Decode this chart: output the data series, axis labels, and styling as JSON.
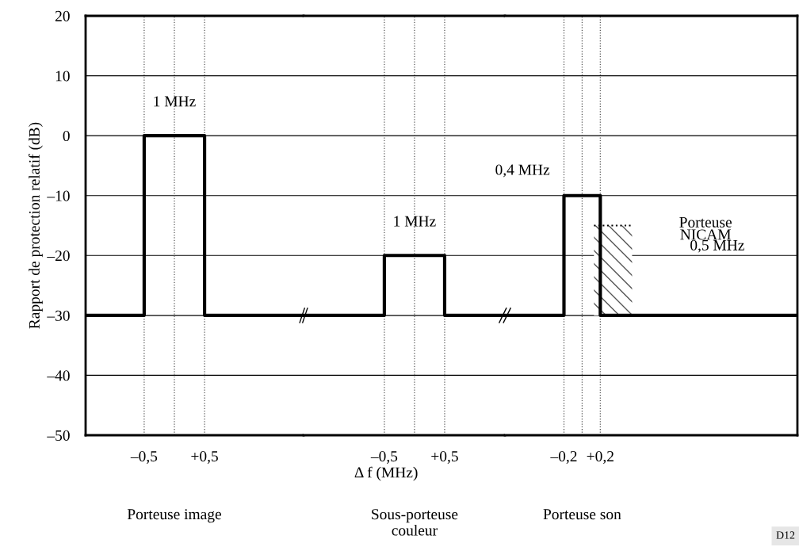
{
  "chart_data": [
    {
      "type": "line",
      "xlabel": "Porteuse image",
      "ylabel": "Rapport de protection relatif (dB)",
      "xlim": [
        -1.47,
        2.14
      ],
      "xticks": [
        {
          "value": -0.5,
          "label": "–0,5"
        },
        {
          "value": 0.5,
          "label": "+0,5"
        }
      ],
      "ylim": [
        -50,
        20
      ],
      "yticks": [
        {
          "value": -50,
          "label": "–50"
        },
        {
          "value": -40,
          "label": "–40"
        },
        {
          "value": -30,
          "label": "–30"
        },
        {
          "value": -20,
          "label": "–20"
        },
        {
          "value": -10,
          "label": "–10"
        },
        0,
        10,
        20
      ],
      "grid": "y",
      "line_style": "solid",
      "series": [
        {
          "color": "#000000",
          "x": [
            -1.47,
            -0.5,
            -0.5,
            0.5,
            0.5,
            2.14
          ],
          "values": [
            -30,
            -30,
            0,
            0,
            -30,
            -30
          ]
        }
      ],
      "ref_lines": [
        {
          "axis": "x",
          "value": -0.5,
          "color": "#555555",
          "line_style": "dotted"
        },
        {
          "axis": "x",
          "value": 0,
          "color": "#555555",
          "line_style": "dotted"
        },
        {
          "axis": "x",
          "value": 0.5,
          "color": "#555555",
          "line_style": "dotted"
        }
      ],
      "annotations": [
        {
          "text": "1 MHz",
          "x": 0,
          "y": 5.5
        }
      ]
    },
    {
      "type": "line",
      "xlabel": "Sous-porteuse\ncouleur",
      "xlim": [
        -1.84,
        1.5
      ],
      "xticks": [
        {
          "value": -0.5,
          "label": "–0,5"
        },
        {
          "value": 0.5,
          "label": "+0,5"
        }
      ],
      "ylim": [
        -50,
        20
      ],
      "yticks": [
        -50,
        -40,
        -30,
        -20,
        -10,
        0,
        10,
        20
      ],
      "grid": "y",
      "tick_labels": "x",
      "line_style": "solid",
      "series": [
        {
          "color": "#000000",
          "x": [
            -1.84,
            -0.5,
            -0.5,
            0.5,
            0.5,
            1.5
          ],
          "values": [
            -30,
            -30,
            -20,
            -20,
            -30,
            -30
          ]
        }
      ],
      "ref_lines": [
        {
          "axis": "x",
          "value": -0.5,
          "color": "#555555",
          "line_style": "dotted"
        },
        {
          "axis": "x",
          "value": 0,
          "color": "#555555",
          "line_style": "dotted"
        },
        {
          "axis": "x",
          "value": 0.5,
          "color": "#555555",
          "line_style": "dotted"
        }
      ],
      "annotations": [
        {
          "text": "1 MHz",
          "x": 0,
          "y": -14.5
        },
        "Δ f (MHz)"
      ]
    },
    {
      "type": "line",
      "xlabel": "Porteuse son",
      "xlim": [
        -0.85,
        2.37
      ],
      "xticks": [
        {
          "value": -0.2,
          "label": "–0,2"
        },
        {
          "value": 0.2,
          "label": "+0,2"
        }
      ],
      "ylim": [
        -50,
        20
      ],
      "yticks": [
        -50,
        -40,
        -30,
        -20,
        -10,
        0,
        10,
        20
      ],
      "grid": "y",
      "tick_labels": "x",
      "line_style": "solid",
      "series": [
        {
          "color": "#000000",
          "x": [
            -0.85,
            -0.2,
            -0.2,
            0.2,
            0.2,
            2.37
          ],
          "values": [
            -30,
            -30,
            -10,
            -10,
            -30,
            -30
          ]
        },
        {
          "type": "area",
          "color": "#555555",
          "x": [
            0.13,
            0.13,
            0.55,
            0.55
          ],
          "values": [
            -30,
            -15,
            -15,
            -30
          ]
        }
      ],
      "ref_lines": [
        {
          "axis": "x",
          "value": -0.2,
          "color": "#555555",
          "line_style": "dotted"
        },
        {
          "axis": "x",
          "value": 0,
          "color": "#555555",
          "line_style": "dotted"
        },
        {
          "axis": "x",
          "value": 0.2,
          "color": "#555555",
          "line_style": "dotted"
        }
      ],
      "annotations": [
        "0,4 MHz",
        "Porteuse\nNICAM",
        "0,5 MHz",
        "D12"
      ]
    }
  ]
}
